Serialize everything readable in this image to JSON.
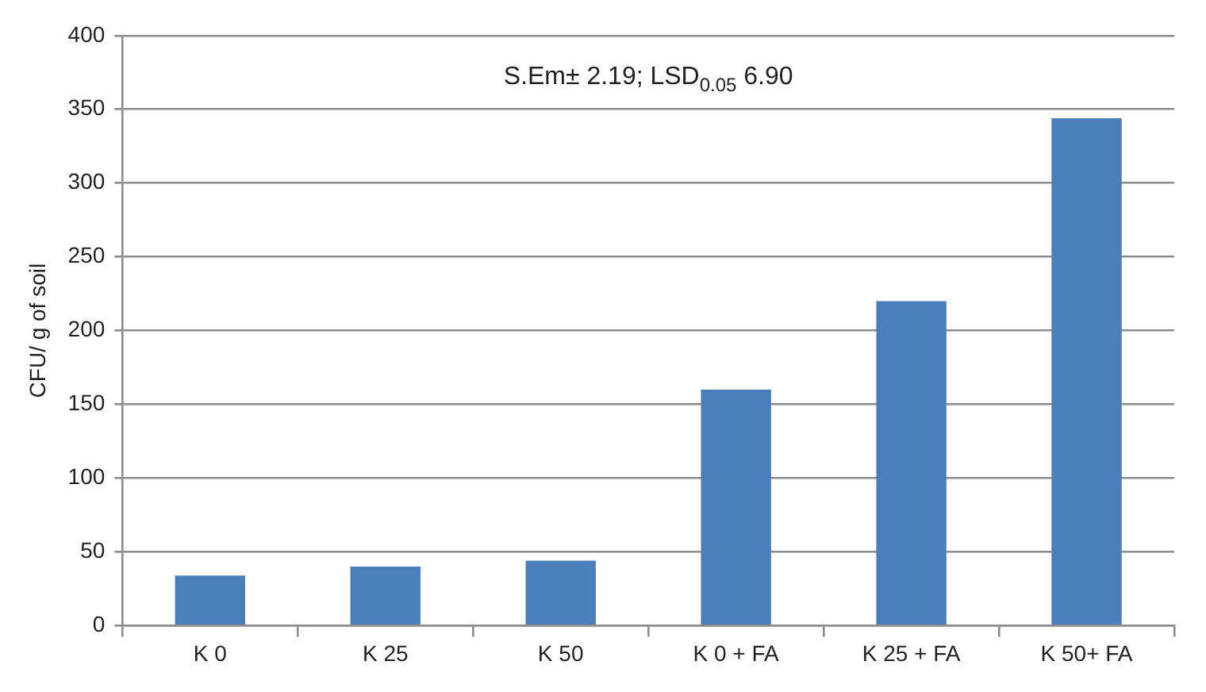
{
  "chart_data": {
    "type": "bar",
    "ylabel": "CFU/ g of soil",
    "categories": [
      "K 0",
      "K 25",
      "K 50",
      "K 0 + FA",
      "K 25 + FA",
      "K 50+ FA"
    ],
    "values": [
      34,
      40,
      44,
      160,
      220,
      344
    ],
    "color": "#4a7ebb",
    "ylim": [
      0,
      400
    ],
    "yticks": [
      0,
      50,
      100,
      150,
      200,
      250,
      300,
      350,
      400
    ],
    "grid": "y",
    "annotations": [
      "S.Em± 2.19; LSD$_{0.05}$ 6.90"
    ]
  }
}
